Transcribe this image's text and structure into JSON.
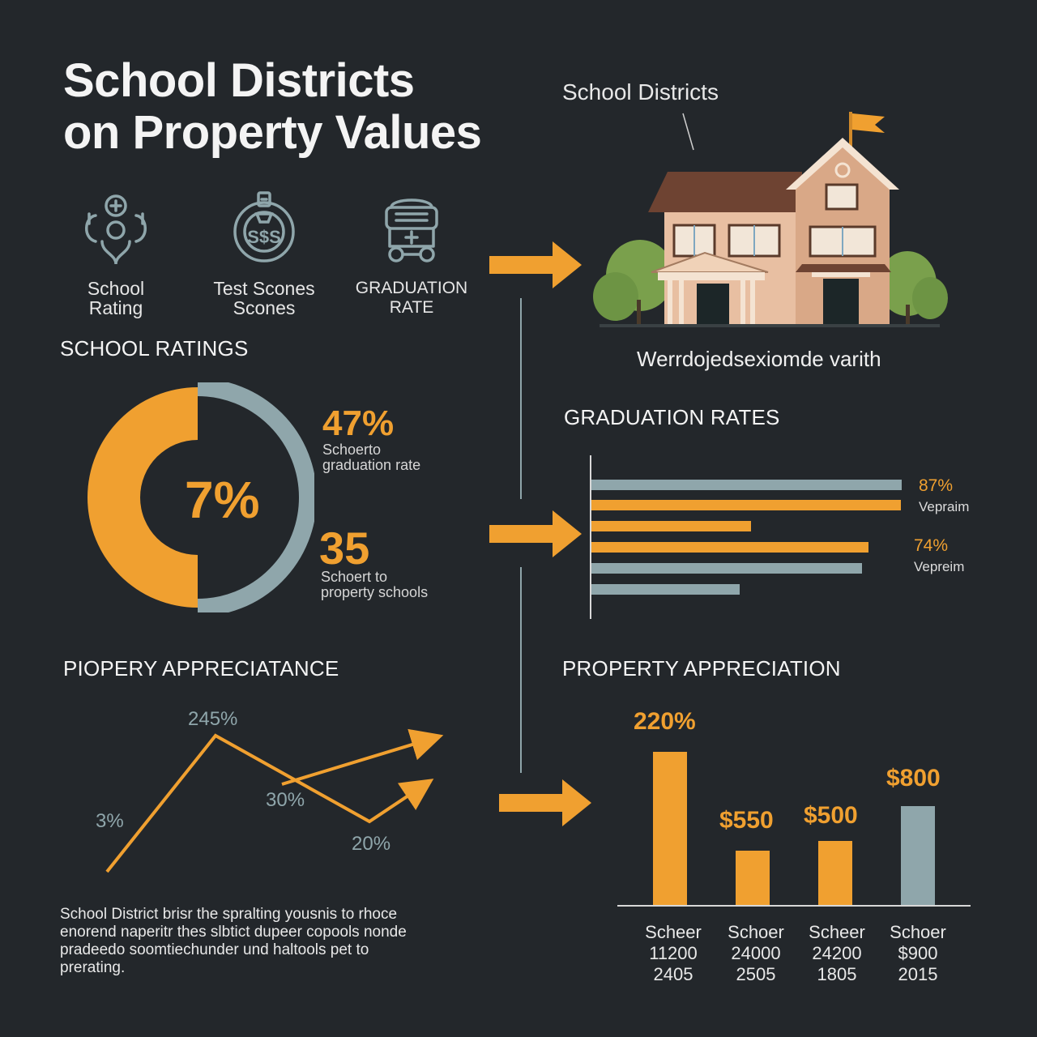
{
  "title": {
    "line1": "School Districts",
    "line2": "on Property Values"
  },
  "house_label": "School Districts",
  "house_caption": "Werrdojedsexiomde varith",
  "icons": [
    {
      "icon": "school-rating-icon",
      "line1": "School",
      "line2": "Rating"
    },
    {
      "icon": "test-scores-icon",
      "line1": "Test Scones",
      "line2": "Scones"
    },
    {
      "icon": "graduation-rate-icon",
      "line1": "GRADUATION",
      "line2": "RATE"
    }
  ],
  "school_ratings": {
    "heading": "SCHOOL RATINGS",
    "center_value": "7%",
    "stat1": {
      "value": "47%",
      "line1": "Schoerto",
      "line2": "graduation rate"
    },
    "stat2": {
      "value": "35",
      "line1": "Schoert to",
      "line2": "property schools"
    }
  },
  "graduation_rates": {
    "heading": "GRADUATION RATES",
    "label1": {
      "value": "87%",
      "sub": "Vepraim"
    },
    "label2": {
      "value": "74%",
      "sub": "Vepreim"
    }
  },
  "appreciation_line": {
    "heading": "PIOPERY APPRECIATANCE",
    "labels": {
      "a": "3%",
      "b": "245%",
      "c": "30%",
      "d": "20%"
    }
  },
  "appreciation_bars": {
    "heading": "PROPERTY APPRECIATION",
    "columns": [
      {
        "value": "220%",
        "line1": "Scheer",
        "line2": "11200",
        "line3": "2405"
      },
      {
        "value": "$550",
        "line1": "Schoer",
        "line2": "24000",
        "line3": "2505"
      },
      {
        "value": "$500",
        "line1": "Scheer",
        "line2": "24200",
        "line3": "1805"
      },
      {
        "value": "$800",
        "line1": "Schoer",
        "line2": "$900",
        "line3": "2015"
      }
    ]
  },
  "description": {
    "line1": "School District  brisr the spralting yousnis to rhoce",
    "line2": "enorend naperitr thes slbtict dupeer copools nonde",
    "line3": "pradeedo soomtiechunder und haltools pet to",
    "line4": "prerating."
  },
  "colors": {
    "background": "#23272b",
    "orange": "#f0a030",
    "slate": "#8fa6ab",
    "text": "#f2f2f2"
  }
}
